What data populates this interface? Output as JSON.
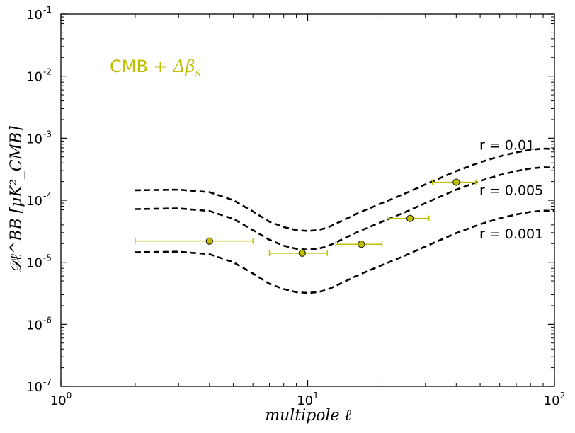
{
  "chart_data": {
    "type": "line",
    "title": "",
    "xlabel": "multipole ℓ",
    "ylabel": "𝒟ℓ^BB [μK²_CMB]",
    "xscale": "log",
    "yscale": "log",
    "xlim": [
      1,
      100
    ],
    "ylim": [
      1e-07,
      0.1
    ],
    "xticks": [
      {
        "value": 1,
        "base": "10",
        "exp": "0"
      },
      {
        "value": 10,
        "base": "10",
        "exp": "1"
      },
      {
        "value": 100,
        "base": "10",
        "exp": "2"
      }
    ],
    "yticks": [
      {
        "value": 1e-07,
        "base": "10",
        "exp": "-7"
      },
      {
        "value": 1e-06,
        "base": "10",
        "exp": "-6"
      },
      {
        "value": 1e-05,
        "base": "10",
        "exp": "-5"
      },
      {
        "value": 0.0001,
        "base": "10",
        "exp": "-4"
      },
      {
        "value": 0.001,
        "base": "10",
        "exp": "-3"
      },
      {
        "value": 0.01,
        "base": "10",
        "exp": "-2"
      },
      {
        "value": 0.1,
        "base": "10",
        "exp": "-1"
      }
    ],
    "grid": false,
    "annotation": {
      "prefix": "CMB + ",
      "symbol": "Δβ",
      "subscript": "s",
      "color": "#bfbf00"
    },
    "series": [
      {
        "name": "r = 0.01",
        "style": "dashed",
        "color": "#000000",
        "x": [
          2,
          3,
          4,
          5,
          6,
          7,
          8,
          9,
          10,
          11,
          12,
          14,
          16,
          20,
          25,
          30,
          40,
          50,
          60,
          70,
          80,
          90,
          100
        ],
        "y": [
          0.000145,
          0.000148,
          0.000135,
          0.0001,
          6.6e-05,
          4.5e-05,
          3.7e-05,
          3.3e-05,
          3.2e-05,
          3.3e-05,
          3.6e-05,
          4.8e-05,
          6.2e-05,
          9e-05,
          0.00013,
          0.00018,
          0.000295,
          0.00041,
          0.00051,
          0.00059,
          0.00065,
          0.00068,
          0.00067
        ]
      },
      {
        "name": "r = 0.005",
        "style": "dashed",
        "color": "#000000",
        "x": [
          2,
          3,
          4,
          5,
          6,
          7,
          8,
          9,
          10,
          11,
          12,
          14,
          16,
          20,
          25,
          30,
          40,
          50,
          60,
          70,
          80,
          90,
          100
        ],
        "y": [
          7.2e-05,
          7.4e-05,
          6.7e-05,
          5e-05,
          3.3e-05,
          2.3e-05,
          1.85e-05,
          1.65e-05,
          1.6e-05,
          1.65e-05,
          1.8e-05,
          2.4e-05,
          3.1e-05,
          4.5e-05,
          6.5e-05,
          9e-05,
          0.000148,
          0.000205,
          0.000255,
          0.000295,
          0.000325,
          0.00034,
          0.000335
        ]
      },
      {
        "name": "r = 0.001",
        "style": "dashed",
        "color": "#000000",
        "x": [
          2,
          3,
          4,
          5,
          6,
          7,
          8,
          9,
          10,
          11,
          12,
          14,
          16,
          20,
          25,
          30,
          40,
          50,
          60,
          70,
          80,
          90,
          100
        ],
        "y": [
          1.45e-05,
          1.48e-05,
          1.35e-05,
          1e-05,
          6.6e-06,
          4.5e-06,
          3.7e-06,
          3.3e-06,
          3.2e-06,
          3.3e-06,
          3.6e-06,
          4.8e-06,
          6.2e-06,
          9e-06,
          1.3e-05,
          1.8e-05,
          2.95e-05,
          4.1e-05,
          5.1e-05,
          5.9e-05,
          6.5e-05,
          6.8e-05,
          6.7e-05
        ]
      }
    ],
    "points": {
      "color": "#bfbf00",
      "x": [
        4,
        9.5,
        16.5,
        26,
        40
      ],
      "y": [
        2.2e-05,
        1.4e-05,
        1.95e-05,
        5.1e-05,
        0.000195
      ],
      "xerr_low": [
        2,
        7,
        13,
        21,
        32
      ],
      "xerr_high": [
        6,
        12,
        20,
        31,
        48
      ]
    }
  }
}
